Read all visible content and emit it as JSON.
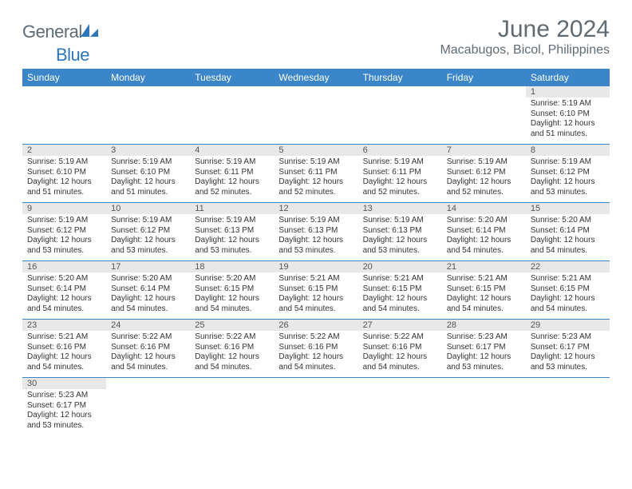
{
  "colors": {
    "header_bg": "#3a86c8",
    "header_text": "#ffffff",
    "daynum_bg": "#e8e8e8",
    "cell_border": "#3a86c8",
    "title_color": "#5f6a72",
    "logo_gray": "#5f6a72",
    "logo_blue": "#2d76b9",
    "body_text": "#333333"
  },
  "logo": {
    "text_gray": "General",
    "text_blue": "Blue"
  },
  "title": {
    "month": "June 2024",
    "location": "Macabugos, Bicol, Philippines"
  },
  "weekdays": [
    "Sunday",
    "Monday",
    "Tuesday",
    "Wednesday",
    "Thursday",
    "Friday",
    "Saturday"
  ],
  "weeks": [
    [
      {
        "empty": true
      },
      {
        "empty": true
      },
      {
        "empty": true
      },
      {
        "empty": true
      },
      {
        "empty": true
      },
      {
        "empty": true
      },
      {
        "day": "1",
        "sunrise": "Sunrise: 5:19 AM",
        "sunset": "Sunset: 6:10 PM",
        "daylight1": "Daylight: 12 hours",
        "daylight2": "and 51 minutes."
      }
    ],
    [
      {
        "day": "2",
        "sunrise": "Sunrise: 5:19 AM",
        "sunset": "Sunset: 6:10 PM",
        "daylight1": "Daylight: 12 hours",
        "daylight2": "and 51 minutes."
      },
      {
        "day": "3",
        "sunrise": "Sunrise: 5:19 AM",
        "sunset": "Sunset: 6:10 PM",
        "daylight1": "Daylight: 12 hours",
        "daylight2": "and 51 minutes."
      },
      {
        "day": "4",
        "sunrise": "Sunrise: 5:19 AM",
        "sunset": "Sunset: 6:11 PM",
        "daylight1": "Daylight: 12 hours",
        "daylight2": "and 52 minutes."
      },
      {
        "day": "5",
        "sunrise": "Sunrise: 5:19 AM",
        "sunset": "Sunset: 6:11 PM",
        "daylight1": "Daylight: 12 hours",
        "daylight2": "and 52 minutes."
      },
      {
        "day": "6",
        "sunrise": "Sunrise: 5:19 AM",
        "sunset": "Sunset: 6:11 PM",
        "daylight1": "Daylight: 12 hours",
        "daylight2": "and 52 minutes."
      },
      {
        "day": "7",
        "sunrise": "Sunrise: 5:19 AM",
        "sunset": "Sunset: 6:12 PM",
        "daylight1": "Daylight: 12 hours",
        "daylight2": "and 52 minutes."
      },
      {
        "day": "8",
        "sunrise": "Sunrise: 5:19 AM",
        "sunset": "Sunset: 6:12 PM",
        "daylight1": "Daylight: 12 hours",
        "daylight2": "and 53 minutes."
      }
    ],
    [
      {
        "day": "9",
        "sunrise": "Sunrise: 5:19 AM",
        "sunset": "Sunset: 6:12 PM",
        "daylight1": "Daylight: 12 hours",
        "daylight2": "and 53 minutes."
      },
      {
        "day": "10",
        "sunrise": "Sunrise: 5:19 AM",
        "sunset": "Sunset: 6:12 PM",
        "daylight1": "Daylight: 12 hours",
        "daylight2": "and 53 minutes."
      },
      {
        "day": "11",
        "sunrise": "Sunrise: 5:19 AM",
        "sunset": "Sunset: 6:13 PM",
        "daylight1": "Daylight: 12 hours",
        "daylight2": "and 53 minutes."
      },
      {
        "day": "12",
        "sunrise": "Sunrise: 5:19 AM",
        "sunset": "Sunset: 6:13 PM",
        "daylight1": "Daylight: 12 hours",
        "daylight2": "and 53 minutes."
      },
      {
        "day": "13",
        "sunrise": "Sunrise: 5:19 AM",
        "sunset": "Sunset: 6:13 PM",
        "daylight1": "Daylight: 12 hours",
        "daylight2": "and 53 minutes."
      },
      {
        "day": "14",
        "sunrise": "Sunrise: 5:20 AM",
        "sunset": "Sunset: 6:14 PM",
        "daylight1": "Daylight: 12 hours",
        "daylight2": "and 54 minutes."
      },
      {
        "day": "15",
        "sunrise": "Sunrise: 5:20 AM",
        "sunset": "Sunset: 6:14 PM",
        "daylight1": "Daylight: 12 hours",
        "daylight2": "and 54 minutes."
      }
    ],
    [
      {
        "day": "16",
        "sunrise": "Sunrise: 5:20 AM",
        "sunset": "Sunset: 6:14 PM",
        "daylight1": "Daylight: 12 hours",
        "daylight2": "and 54 minutes."
      },
      {
        "day": "17",
        "sunrise": "Sunrise: 5:20 AM",
        "sunset": "Sunset: 6:14 PM",
        "daylight1": "Daylight: 12 hours",
        "daylight2": "and 54 minutes."
      },
      {
        "day": "18",
        "sunrise": "Sunrise: 5:20 AM",
        "sunset": "Sunset: 6:15 PM",
        "daylight1": "Daylight: 12 hours",
        "daylight2": "and 54 minutes."
      },
      {
        "day": "19",
        "sunrise": "Sunrise: 5:21 AM",
        "sunset": "Sunset: 6:15 PM",
        "daylight1": "Daylight: 12 hours",
        "daylight2": "and 54 minutes."
      },
      {
        "day": "20",
        "sunrise": "Sunrise: 5:21 AM",
        "sunset": "Sunset: 6:15 PM",
        "daylight1": "Daylight: 12 hours",
        "daylight2": "and 54 minutes."
      },
      {
        "day": "21",
        "sunrise": "Sunrise: 5:21 AM",
        "sunset": "Sunset: 6:15 PM",
        "daylight1": "Daylight: 12 hours",
        "daylight2": "and 54 minutes."
      },
      {
        "day": "22",
        "sunrise": "Sunrise: 5:21 AM",
        "sunset": "Sunset: 6:15 PM",
        "daylight1": "Daylight: 12 hours",
        "daylight2": "and 54 minutes."
      }
    ],
    [
      {
        "day": "23",
        "sunrise": "Sunrise: 5:21 AM",
        "sunset": "Sunset: 6:16 PM",
        "daylight1": "Daylight: 12 hours",
        "daylight2": "and 54 minutes."
      },
      {
        "day": "24",
        "sunrise": "Sunrise: 5:22 AM",
        "sunset": "Sunset: 6:16 PM",
        "daylight1": "Daylight: 12 hours",
        "daylight2": "and 54 minutes."
      },
      {
        "day": "25",
        "sunrise": "Sunrise: 5:22 AM",
        "sunset": "Sunset: 6:16 PM",
        "daylight1": "Daylight: 12 hours",
        "daylight2": "and 54 minutes."
      },
      {
        "day": "26",
        "sunrise": "Sunrise: 5:22 AM",
        "sunset": "Sunset: 6:16 PM",
        "daylight1": "Daylight: 12 hours",
        "daylight2": "and 54 minutes."
      },
      {
        "day": "27",
        "sunrise": "Sunrise: 5:22 AM",
        "sunset": "Sunset: 6:16 PM",
        "daylight1": "Daylight: 12 hours",
        "daylight2": "and 54 minutes."
      },
      {
        "day": "28",
        "sunrise": "Sunrise: 5:23 AM",
        "sunset": "Sunset: 6:17 PM",
        "daylight1": "Daylight: 12 hours",
        "daylight2": "and 53 minutes."
      },
      {
        "day": "29",
        "sunrise": "Sunrise: 5:23 AM",
        "sunset": "Sunset: 6:17 PM",
        "daylight1": "Daylight: 12 hours",
        "daylight2": "and 53 minutes."
      }
    ],
    [
      {
        "day": "30",
        "sunrise": "Sunrise: 5:23 AM",
        "sunset": "Sunset: 6:17 PM",
        "daylight1": "Daylight: 12 hours",
        "daylight2": "and 53 minutes."
      },
      {
        "empty": true
      },
      {
        "empty": true
      },
      {
        "empty": true
      },
      {
        "empty": true
      },
      {
        "empty": true
      },
      {
        "empty": true
      }
    ]
  ]
}
